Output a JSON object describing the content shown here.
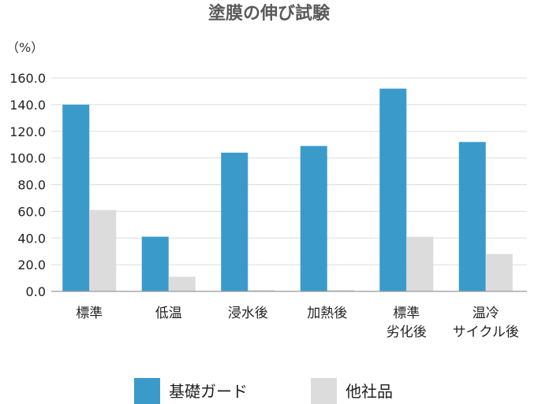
{
  "chart_data": {
    "type": "bar",
    "title": "塗膜の伸び試験",
    "unit_label": "（%）",
    "ylim": [
      0,
      160
    ],
    "yticks": [
      "0.0",
      "20.0",
      "40.0",
      "60.0",
      "80.0",
      "100.0",
      "120.0",
      "140.0",
      "160.0"
    ],
    "grid": true,
    "legend_position": "bottom",
    "categories": [
      [
        "標準"
      ],
      [
        "低温"
      ],
      [
        "浸水後"
      ],
      [
        "加熱後"
      ],
      [
        "標準",
        "劣化後"
      ],
      [
        "温冷",
        "サイクル後"
      ]
    ],
    "series": [
      {
        "name": "基礎ガード",
        "color": "#3a9bcb",
        "values": [
          140,
          41,
          104,
          109,
          152,
          112
        ]
      },
      {
        "name": "他社品",
        "color": "#dcdcdc",
        "values": [
          61,
          11,
          1,
          1,
          41,
          28
        ]
      }
    ]
  }
}
